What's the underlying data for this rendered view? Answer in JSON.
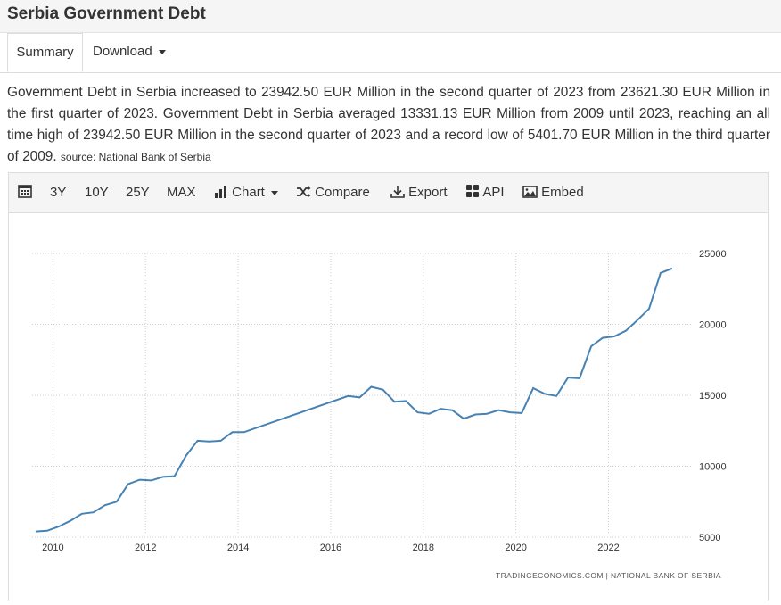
{
  "header": {
    "title": "Serbia Government Debt"
  },
  "tabs": {
    "summary": "Summary",
    "download": "Download"
  },
  "description": {
    "text": "Government Debt in Serbia increased to 23942.50 EUR Million in the second quarter of 2023 from 23621.30 EUR Million in the first quarter of 2023. Government Debt in Serbia averaged 13331.13 EUR Million from 2009 until 2023, reaching an all time high of 23942.50 EUR Million in the second quarter of 2023 and a record low of 5401.70 EUR Million in the third quarter of 2009.",
    "source": "source: National Bank of Serbia"
  },
  "toolbar": {
    "range_3y": "3Y",
    "range_10y": "10Y",
    "range_25y": "25Y",
    "range_max": "MAX",
    "chart": "Chart",
    "compare": "Compare",
    "export": "Export",
    "api": "API",
    "embed": "Embed",
    "icons": [
      "calendar-icon",
      "bar-chart-icon",
      "shuffle-icon",
      "download-icon",
      "grid-icon",
      "image-icon"
    ]
  },
  "chart_data": {
    "type": "line",
    "title": "",
    "xlabel": "",
    "ylabel": "",
    "credit": "TRADINGECONOMICS.COM | NATIONAL BANK OF SERBIA",
    "x_ticks": [
      "2010",
      "2012",
      "2014",
      "2016",
      "2018",
      "2020",
      "2022"
    ],
    "y_ticks": [
      "5000",
      "10000",
      "15000",
      "20000",
      "25000"
    ],
    "xlim": [
      2009.55,
      2023.8
    ],
    "ylim": [
      5000,
      25000
    ],
    "grid": true,
    "y_axis_side": "right",
    "line_color": "#4682b4",
    "series": [
      {
        "x": [
          2009.625,
          2009.875,
          2010.125,
          2010.375,
          2010.625,
          2010.875,
          2011.125,
          2011.375,
          2011.625,
          2011.875,
          2012.125,
          2012.375,
          2012.625,
          2012.875,
          2013.125,
          2013.375,
          2013.625,
          2013.875,
          2014.125,
          2016.375,
          2016.625,
          2016.875,
          2017.125,
          2017.375,
          2017.625,
          2017.875,
          2018.125,
          2018.375,
          2018.625,
          2018.875,
          2019.125,
          2019.375,
          2019.625,
          2019.875,
          2020.125,
          2020.375,
          2020.625,
          2020.875,
          2021.125,
          2021.375,
          2021.625,
          2021.875,
          2022.125,
          2022.375,
          2022.625,
          2022.875,
          2023.125,
          2023.375
        ],
        "values": [
          5402,
          5450,
          5750,
          6150,
          6650,
          6750,
          7250,
          7500,
          8750,
          9050,
          9000,
          9250,
          9300,
          10750,
          11800,
          11750,
          11800,
          12400,
          12400,
          14950,
          14850,
          15600,
          15400,
          14550,
          14600,
          13800,
          13700,
          14050,
          13950,
          13350,
          13650,
          13700,
          13950,
          13800,
          13750,
          15500,
          15100,
          14950,
          16250,
          16200,
          18450,
          19050,
          19150,
          19550,
          20300,
          21100,
          23621,
          23942
        ]
      }
    ]
  }
}
